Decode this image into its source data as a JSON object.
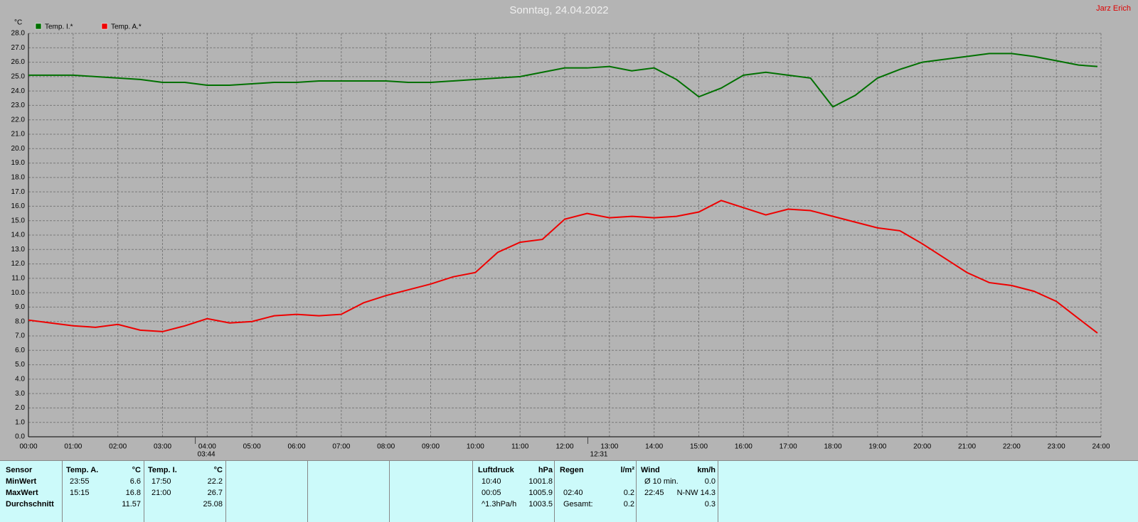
{
  "chart_data": {
    "type": "line",
    "title": "Sonntag, 24.04.2022",
    "author": "Jarz Erich",
    "y_unit": "°C",
    "x": [
      0,
      0.5,
      1,
      1.5,
      2,
      2.5,
      3,
      3.5,
      4,
      4.5,
      5,
      5.5,
      6,
      6.5,
      7,
      7.5,
      8,
      8.5,
      9,
      9.5,
      10,
      10.5,
      11,
      11.5,
      12,
      12.5,
      13,
      13.5,
      14,
      14.5,
      15,
      15.5,
      16,
      16.5,
      17,
      17.5,
      18,
      18.5,
      19,
      19.5,
      20,
      20.5,
      21,
      21.5,
      22,
      22.5,
      23,
      23.5,
      23.92
    ],
    "series": [
      {
        "name": "Temp. I.*",
        "color": "#007000",
        "values": [
          25.1,
          25.1,
          25.1,
          25.0,
          24.9,
          24.8,
          24.6,
          24.6,
          24.4,
          24.4,
          24.5,
          24.6,
          24.6,
          24.7,
          24.7,
          24.7,
          24.7,
          24.6,
          24.6,
          24.7,
          24.8,
          24.9,
          25.0,
          25.3,
          25.6,
          25.6,
          25.7,
          25.4,
          25.6,
          24.8,
          23.6,
          24.2,
          25.1,
          25.3,
          25.1,
          24.9,
          22.9,
          23.7,
          24.9,
          25.5,
          26.0,
          26.2,
          26.4,
          26.6,
          26.6,
          26.4,
          26.1,
          25.8,
          25.7
        ]
      },
      {
        "name": "Temp. A.*",
        "color": "#ee0000",
        "values": [
          8.1,
          7.9,
          7.7,
          7.6,
          7.8,
          7.4,
          7.3,
          7.7,
          8.2,
          7.9,
          8.0,
          8.4,
          8.5,
          8.4,
          8.5,
          9.3,
          9.8,
          10.2,
          10.6,
          11.1,
          11.4,
          12.8,
          13.5,
          13.7,
          15.1,
          15.5,
          15.2,
          15.3,
          15.2,
          15.3,
          15.6,
          16.4,
          15.9,
          15.4,
          15.8,
          15.7,
          15.3,
          14.9,
          14.5,
          14.3,
          13.4,
          12.4,
          11.4,
          10.7,
          10.5,
          10.1,
          9.4,
          8.2,
          7.2
        ]
      }
    ],
    "xlim": [
      0,
      24
    ],
    "xticks": [
      {
        "value": 0,
        "label": "00:00"
      },
      {
        "value": 1,
        "label": "01:00"
      },
      {
        "value": 2,
        "label": "02:00"
      },
      {
        "value": 3,
        "label": "03:00"
      },
      {
        "value": 4,
        "label": "04:00"
      },
      {
        "value": 5,
        "label": "05:00"
      },
      {
        "value": 6,
        "label": "06:00"
      },
      {
        "value": 7,
        "label": "07:00"
      },
      {
        "value": 8,
        "label": "08:00"
      },
      {
        "value": 9,
        "label": "09:00"
      },
      {
        "value": 10,
        "label": "10:00"
      },
      {
        "value": 11,
        "label": "11:00"
      },
      {
        "value": 12,
        "label": "12:00"
      },
      {
        "value": 13,
        "label": "13:00"
      },
      {
        "value": 14,
        "label": "14:00"
      },
      {
        "value": 15,
        "label": "15:00"
      },
      {
        "value": 16,
        "label": "16:00"
      },
      {
        "value": 17,
        "label": "17:00"
      },
      {
        "value": 18,
        "label": "18:00"
      },
      {
        "value": 19,
        "label": "19:00"
      },
      {
        "value": 20,
        "label": "20:00"
      },
      {
        "value": 21,
        "label": "21:00"
      },
      {
        "value": 22,
        "label": "22:00"
      },
      {
        "value": 23,
        "label": "23:00"
      },
      {
        "value": 24,
        "label": "24:00"
      }
    ],
    "ylim": [
      0,
      28
    ],
    "yticks": [
      {
        "value": 0,
        "label": "0.0"
      },
      {
        "value": 1,
        "label": "1.0"
      },
      {
        "value": 2,
        "label": "2.0"
      },
      {
        "value": 3,
        "label": "3.0"
      },
      {
        "value": 4,
        "label": "4.0"
      },
      {
        "value": 5,
        "label": "5.0"
      },
      {
        "value": 6,
        "label": "6.0"
      },
      {
        "value": 7,
        "label": "7.0"
      },
      {
        "value": 8,
        "label": "8.0"
      },
      {
        "value": 9,
        "label": "9.0"
      },
      {
        "value": 10,
        "label": "10.0"
      },
      {
        "value": 11,
        "label": "11.0"
      },
      {
        "value": 12,
        "label": "12.0"
      },
      {
        "value": 13,
        "label": "13.0"
      },
      {
        "value": 14,
        "label": "14.0"
      },
      {
        "value": 15,
        "label": "15.0"
      },
      {
        "value": 16,
        "label": "16.0"
      },
      {
        "value": 17,
        "label": "17.0"
      },
      {
        "value": 18,
        "label": "18.0"
      },
      {
        "value": 19,
        "label": "19.0"
      },
      {
        "value": 20,
        "label": "20.0"
      },
      {
        "value": 21,
        "label": "21.0"
      },
      {
        "value": 22,
        "label": "22.0"
      },
      {
        "value": 23,
        "label": "23.0"
      },
      {
        "value": 24,
        "label": "24.0"
      },
      {
        "value": 25,
        "label": "25.0"
      },
      {
        "value": 26,
        "label": "26.0"
      },
      {
        "value": 27,
        "label": "27.0"
      },
      {
        "value": 28,
        "label": "28.0"
      }
    ],
    "grid": true,
    "annotations": [
      {
        "x": 3.7333,
        "label": "03:44"
      },
      {
        "x": 12.5167,
        "label": "12:31"
      }
    ]
  },
  "table": {
    "labels": [
      "Sensor",
      "MinWert",
      "MaxWert",
      "Durchschnitt"
    ],
    "groups": [
      {
        "header": [
          "Temp. A.",
          "°C"
        ],
        "rows": [
          [
            "23:55",
            "6.6"
          ],
          [
            "15:15",
            "16.8"
          ],
          [
            null,
            "11.57"
          ]
        ]
      },
      {
        "header": [
          "Temp. I.",
          "°C"
        ],
        "rows": [
          [
            "17:50",
            "22.2"
          ],
          [
            "21:00",
            "26.7"
          ],
          [
            null,
            "25.08"
          ]
        ]
      },
      {
        "header": [
          "Luftdruck",
          "hPa"
        ],
        "rows": [
          [
            "10:40",
            "1001.8"
          ],
          [
            "00:05",
            "1005.9"
          ],
          [
            "^1.3hPa/h",
            "1003.5"
          ]
        ]
      },
      {
        "header": [
          "Regen",
          "l/m²"
        ],
        "rows": [
          [
            null,
            null
          ],
          [
            "02:40",
            "0.2"
          ],
          [
            "Gesamt:",
            "0.2"
          ]
        ]
      },
      {
        "header": [
          "Wind",
          "km/h"
        ],
        "rows": [
          [
            "Ø 10 min.",
            "0.0"
          ],
          [
            "22:45",
            "N-NW 14.3"
          ],
          [
            null,
            "0.3"
          ]
        ]
      }
    ]
  }
}
